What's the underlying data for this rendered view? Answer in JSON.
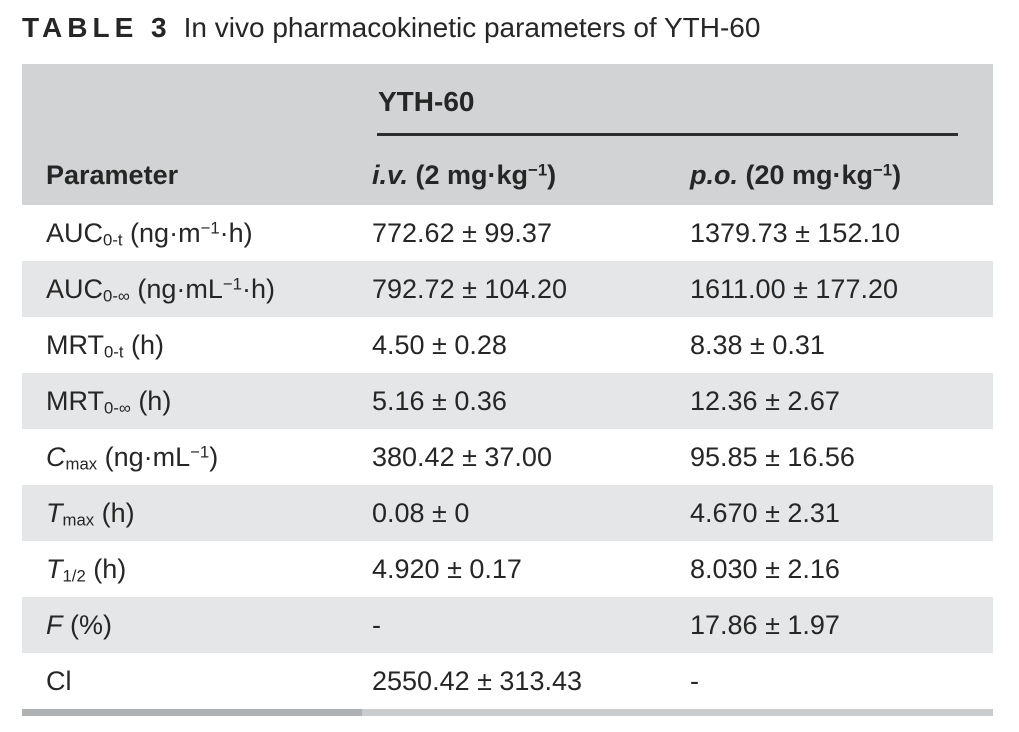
{
  "page": {
    "title_label": "TABLE 3",
    "title_text": "In vivo pharmacokinetic parameters of YTH-60"
  },
  "table": {
    "group_header": "YTH-60",
    "header": {
      "parameter": "Parameter",
      "iv": {
        "abbr": "i.v.",
        "unit_pre": " (2 mg·kg",
        "unit_sup": "−1",
        "unit_post": ")"
      },
      "po": {
        "abbr": "p.o.",
        "unit_pre": " (20 mg·kg",
        "unit_sup": "−1",
        "unit_post": ")"
      }
    },
    "rows": [
      {
        "param": {
          "base": "AUC",
          "sub": "0-t",
          "unit_pre": " (ng·m",
          "unit_sup": "−1",
          "unit_post": "·h)"
        },
        "iv": "772.62 ± 99.37",
        "po": "1379.73 ± 152.10"
      },
      {
        "param": {
          "base": "AUC",
          "sub": "0-∞",
          "unit_pre": " (ng·mL",
          "unit_sup": "−1",
          "unit_post": "·h)"
        },
        "iv": "792.72 ± 104.20",
        "po": "1611.00 ± 177.20"
      },
      {
        "param": {
          "base": "MRT",
          "sub": "0-t",
          "unit_pre": " (h)",
          "unit_sup": "",
          "unit_post": ""
        },
        "iv": "4.50 ± 0.28",
        "po": "8.38 ± 0.31"
      },
      {
        "param": {
          "base": "MRT",
          "sub": "0-∞",
          "unit_pre": " (h)",
          "unit_sup": "",
          "unit_post": ""
        },
        "iv": "5.16 ± 0.36",
        "po": "12.36 ± 2.67"
      },
      {
        "param": {
          "base": "C",
          "sub": "max",
          "unit_pre": " (ng·mL",
          "unit_sup": "−1",
          "unit_post": ")"
        },
        "iv": "380.42 ± 37.00",
        "po": "95.85 ± 16.56"
      },
      {
        "param": {
          "base": "T",
          "sub": "max",
          "unit_pre": " (h)",
          "unit_sup": "",
          "unit_post": ""
        },
        "iv": "0.08 ± 0",
        "po": "4.670 ± 2.31"
      },
      {
        "param": {
          "base": "T",
          "sub": "1/2",
          "unit_pre": " (h)",
          "unit_sup": "",
          "unit_post": ""
        },
        "iv": "4.920 ± 0.17",
        "po": "8.030 ± 2.16"
      },
      {
        "param": {
          "base": "F",
          "sub": "",
          "unit_pre": " (%)",
          "unit_sup": "",
          "unit_post": ""
        },
        "iv": "-",
        "po": "17.86 ± 1.97"
      },
      {
        "param": {
          "base": "Cl",
          "sub": "",
          "unit_pre": "",
          "unit_sup": "",
          "unit_post": ""
        },
        "iv": "2550.42 ± 313.43",
        "po": "-"
      }
    ]
  },
  "colors": {
    "text": "#262626",
    "header_bg": "#d1d3d4",
    "row_alt_bg": "#e5e6e7",
    "rule": "#2e2e2e",
    "bar_left": "#aeb1b4",
    "bar_right": "#c9cbcd"
  }
}
